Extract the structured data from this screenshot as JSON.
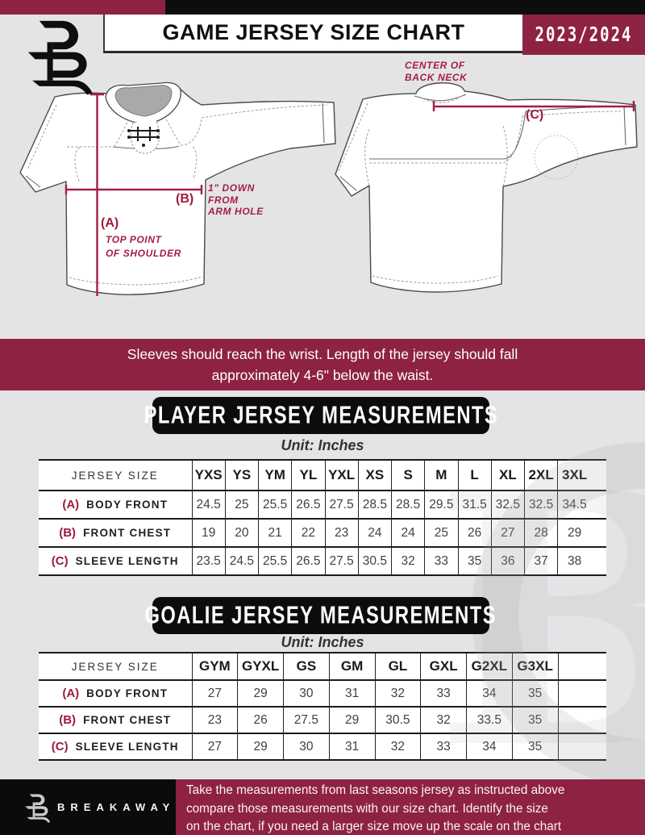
{
  "colors": {
    "maroon": "#8e2242",
    "annotation_maroon": "#a41e42",
    "black_bar": "#0d0d0d",
    "page_bg": "#e4e4e6"
  },
  "header": {
    "title": "GAME JERSEY SIZE CHART",
    "season": "2023/2024"
  },
  "diagram": {
    "front": {
      "a_label": "(A)",
      "a_note_lines": [
        "TOP POINT",
        "OF SHOULDER"
      ],
      "b_label": "(B)",
      "b_note_lines": [
        "1\" DOWN",
        "FROM",
        "ARM HOLE"
      ]
    },
    "back": {
      "c_label": "(C)",
      "neck_note_lines": [
        "CENTER OF",
        "BACK NECK"
      ]
    }
  },
  "notice": {
    "line1": "Sleeves should reach the wrist. Length of the jersey should fall",
    "line2": "approximately 4-6\" below the waist."
  },
  "player_table": {
    "title": "PLAYER JERSEY MEASUREMENTS",
    "unit_label": "Unit: Inches",
    "size_header": "JERSEY SIZE",
    "sizes": [
      "YXS",
      "YS",
      "YM",
      "YL",
      "YXL",
      "XS",
      "S",
      "M",
      "L",
      "XL",
      "2XL",
      "3XL"
    ],
    "rows": [
      {
        "key": "(A)",
        "label": "BODY FRONT",
        "values": [
          "24.5",
          "25",
          "25.5",
          "26.5",
          "27.5",
          "28.5",
          "28.5",
          "29.5",
          "31.5",
          "32.5",
          "32.5",
          "34.5"
        ]
      },
      {
        "key": "(B)",
        "label": "FRONT CHEST",
        "values": [
          "19",
          "20",
          "21",
          "22",
          "23",
          "24",
          "24",
          "25",
          "26",
          "27",
          "28",
          "29"
        ]
      },
      {
        "key": "(C)",
        "label": "SLEEVE LENGTH",
        "values": [
          "23.5",
          "24.5",
          "25.5",
          "26.5",
          "27.5",
          "30.5",
          "32",
          "33",
          "35",
          "36",
          "37",
          "38"
        ]
      }
    ]
  },
  "goalie_table": {
    "title": "GOALIE JERSEY MEASUREMENTS",
    "unit_label": "Unit: Inches",
    "size_header": "JERSEY SIZE",
    "trailing_blank": true,
    "sizes": [
      "GYM",
      "GYXL",
      "GS",
      "GM",
      "GL",
      "GXL",
      "G2XL",
      "G3XL"
    ],
    "rows": [
      {
        "key": "(A)",
        "label": "BODY FRONT",
        "values": [
          "27",
          "29",
          "30",
          "31",
          "32",
          "33",
          "34",
          "35"
        ]
      },
      {
        "key": "(B)",
        "label": "FRONT CHEST",
        "values": [
          "23",
          "26",
          "27.5",
          "29",
          "30.5",
          "32",
          "33.5",
          "35"
        ]
      },
      {
        "key": "(C)",
        "label": "SLEEVE LENGTH",
        "values": [
          "27",
          "29",
          "30",
          "31",
          "32",
          "33",
          "34",
          "35"
        ]
      }
    ]
  },
  "watermark_glyph": "B",
  "footer": {
    "brand": "BREAKAWAY",
    "lines": [
      "Take the measurements from last seasons jersey as instructed above",
      "compare those measurements  with our size chart. Identify the size",
      "on the chart, if you need a larger size move up the scale on the chart"
    ]
  }
}
